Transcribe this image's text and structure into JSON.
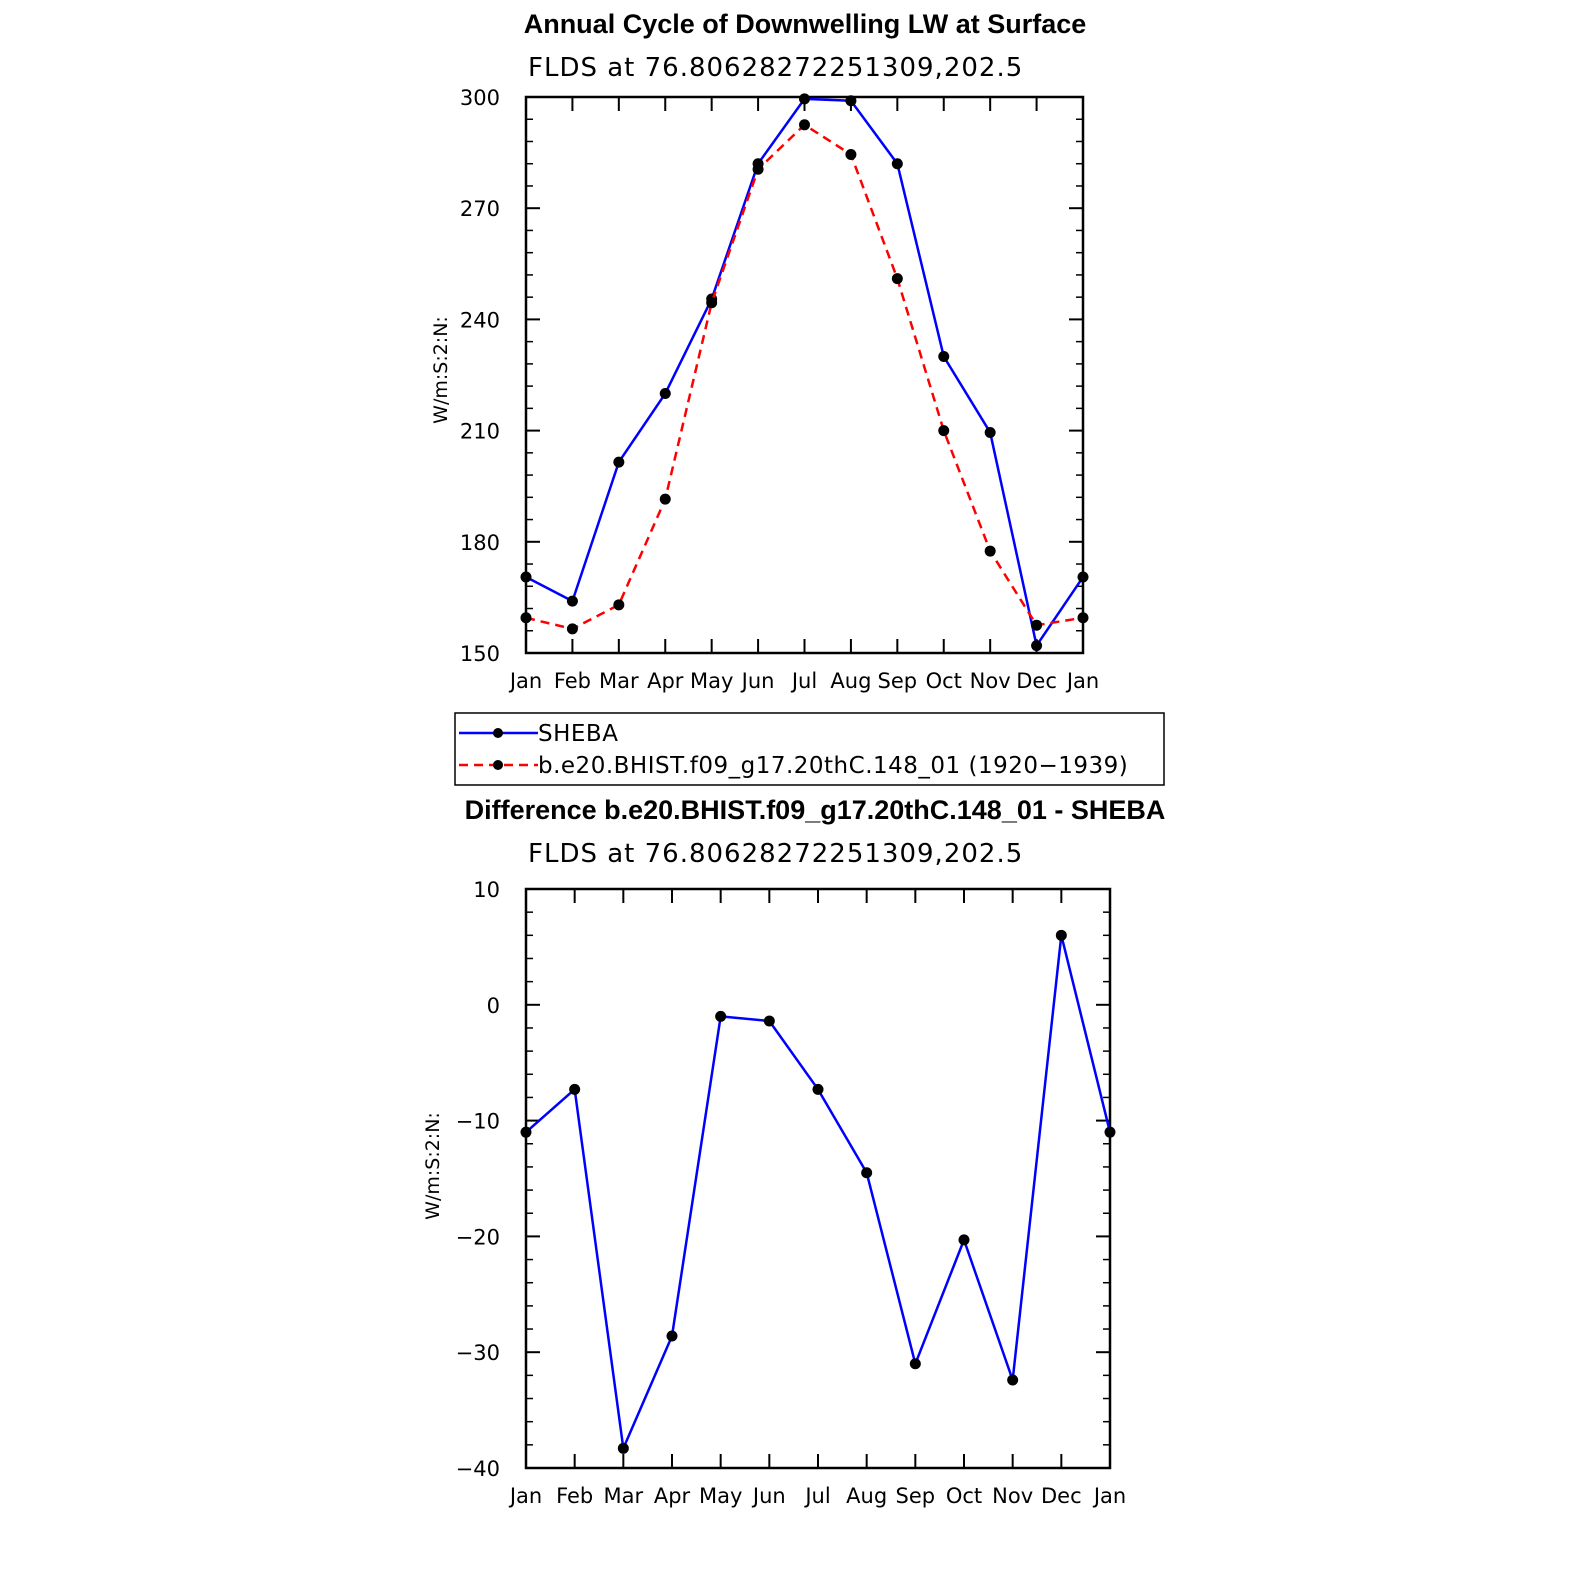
{
  "chart_data": [
    {
      "type": "line",
      "title": "Annual Cycle of Downwelling LW at Surface",
      "subtitle": "FLDS at 76.80628272251309,202.5",
      "ylabel": "W/m:S:2:N:",
      "xlabel": "",
      "categories": [
        "Jan",
        "Feb",
        "Mar",
        "Apr",
        "May",
        "Jun",
        "Jul",
        "Aug",
        "Sep",
        "Oct",
        "Nov",
        "Dec",
        "Jan"
      ],
      "ylim": [
        150,
        300
      ],
      "yticks": [
        150,
        180,
        210,
        240,
        270,
        300
      ],
      "ytick_labels": [
        "150",
        "180",
        "210",
        "240",
        "270",
        "300"
      ],
      "series": [
        {
          "name": "SHEBA",
          "color": "#0000ff",
          "dash": "solid",
          "values": [
            170.5,
            164,
            201.5,
            220,
            245.5,
            282,
            299.5,
            299,
            282,
            230,
            209.5,
            152,
            170.5
          ]
        },
        {
          "name": "b.e20.BHIST.f09_g17.20thC.148_01 (1920−1939)",
          "color": "#ff0000",
          "dash": "dashed",
          "values": [
            159.5,
            156.5,
            163,
            191.5,
            244.5,
            280.5,
            292.5,
            284.5,
            251,
            210,
            177.5,
            157.5,
            159.5
          ]
        }
      ],
      "legend": "below"
    },
    {
      "type": "line",
      "title": "Difference b.e20.BHIST.f09_g17.20thC.148_01 - SHEBA",
      "subtitle": "FLDS at 76.80628272251309,202.5",
      "ylabel": "W/m:S:2:N:",
      "xlabel": "",
      "categories": [
        "Jan",
        "Feb",
        "Mar",
        "Apr",
        "May",
        "Jun",
        "Jul",
        "Aug",
        "Sep",
        "Oct",
        "Nov",
        "Dec",
        "Jan"
      ],
      "ylim": [
        -40,
        10
      ],
      "yticks": [
        -40,
        -30,
        -20,
        -10,
        0,
        10
      ],
      "ytick_labels": [
        "−40",
        "−30",
        "−20",
        "−10",
        "0",
        "10"
      ],
      "series": [
        {
          "color": "#0000ff",
          "dash": "solid",
          "values": [
            -11,
            -7.3,
            -38.3,
            -28.6,
            -1,
            -1.4,
            -7.3,
            -14.5,
            -31,
            -20.3,
            -32.4,
            6,
            -11
          ]
        }
      ]
    }
  ]
}
